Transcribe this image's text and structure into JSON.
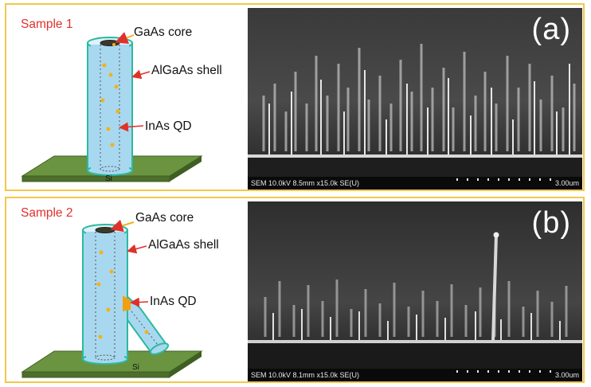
{
  "panels": [
    {
      "sample_title": "Sample 1",
      "labels": {
        "core": "GaAs core",
        "shell": "AlGaAs shell",
        "qd": "InAs QD",
        "substrate": "Si"
      },
      "letter": "(a)",
      "sem_info": "SEM 10.0kV 8.5mm x15.0k SE(U)",
      "sem_scale": "3.00um"
    },
    {
      "sample_title": "Sample 2",
      "labels": {
        "core": "GaAs core",
        "shell": "AlGaAs shell",
        "qd": "InAs QD",
        "substrate": "Si"
      },
      "letter": "(b)",
      "sem_info": "SEM 10.0kV 8.1mm x15.0k SE(U)",
      "sem_scale": "3.00um"
    }
  ],
  "colors": {
    "frame": "#f2c84b",
    "title": "#e0302a",
    "arrow": "#e0302a",
    "shell": "#a8d8f0",
    "substrate": "#5f8a3a",
    "qd": "#f2b21b"
  }
}
